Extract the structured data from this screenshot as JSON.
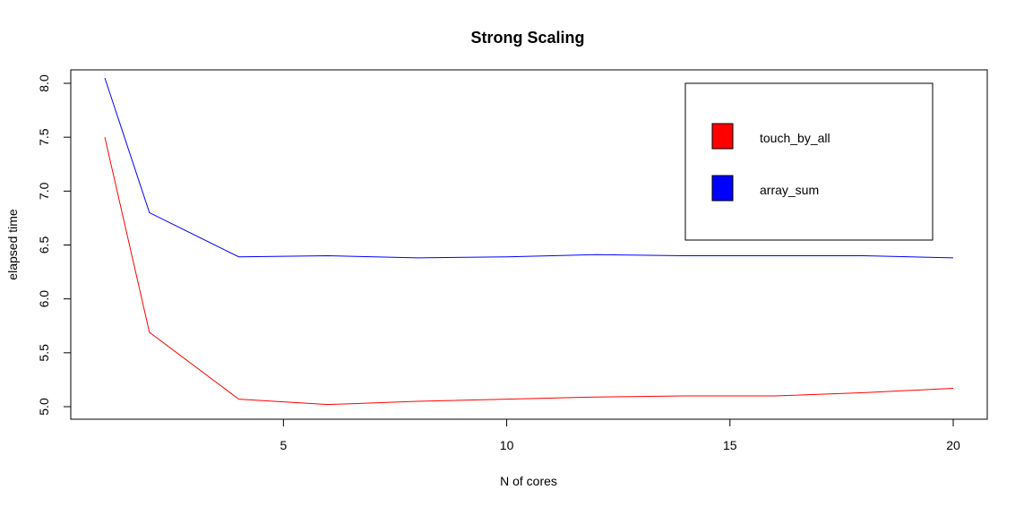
{
  "chart_data": {
    "type": "line",
    "title": "Strong Scaling",
    "xlabel": "N of cores",
    "ylabel": "elapsed time",
    "xlim": [
      1,
      20
    ],
    "ylim": [
      5.0,
      8.0
    ],
    "xticks": [
      5,
      10,
      15,
      20
    ],
    "yticks": [
      5.0,
      5.5,
      6.0,
      6.5,
      7.0,
      7.5,
      8.0
    ],
    "xtick_labels": [
      "5",
      "10",
      "15",
      "20"
    ],
    "ytick_labels": [
      "5.0",
      "5.5",
      "6.0",
      "6.5",
      "7.0",
      "7.5",
      "8.0"
    ],
    "grid": false,
    "legend_position": "top-right",
    "series": [
      {
        "name": "touch_by_all",
        "color": "#ff0000",
        "x": [
          1,
          2,
          4,
          6,
          8,
          10,
          12,
          14,
          16,
          18,
          20
        ],
        "y": [
          7.5,
          5.69,
          5.07,
          5.02,
          5.05,
          5.07,
          5.09,
          5.1,
          5.1,
          5.13,
          5.17
        ]
      },
      {
        "name": "array_sum",
        "color": "#0000ff",
        "x": [
          1,
          2,
          4,
          6,
          8,
          10,
          12,
          14,
          16,
          18,
          20
        ],
        "y": [
          8.05,
          6.8,
          6.39,
          6.4,
          6.38,
          6.39,
          6.41,
          6.4,
          6.4,
          6.4,
          6.38
        ]
      }
    ]
  }
}
